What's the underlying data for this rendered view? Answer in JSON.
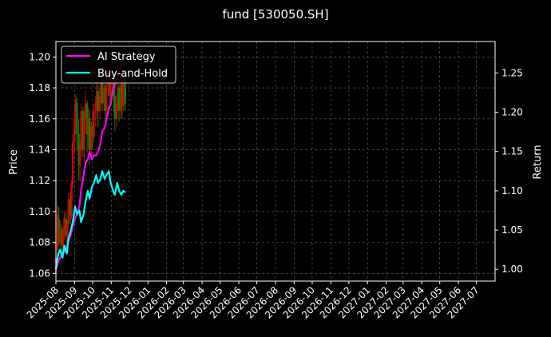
{
  "chart_data": {
    "type": "line",
    "title": "fund [530050.SH]",
    "ylabel_left": "Price",
    "ylabel_right": "Return",
    "ylim_left": [
      1.055,
      1.21
    ],
    "ylim_right": [
      0.985,
      1.29
    ],
    "yticks_left": [
      "1.06",
      "1.08",
      "1.10",
      "1.12",
      "1.14",
      "1.16",
      "1.18",
      "1.20"
    ],
    "yticks_right": [
      "1.00",
      "1.05",
      "1.10",
      "1.15",
      "1.20",
      "1.25"
    ],
    "xlim": [
      "2025-08-01",
      "2027-08-01"
    ],
    "xticks": [
      "2025-08",
      "2025-09",
      "2025-10",
      "2025-11",
      "2025-12",
      "2026-01",
      "2026-02",
      "2026-03",
      "2026-04",
      "2026-05",
      "2026-06",
      "2026-07",
      "2026-08",
      "2026-09",
      "2026-10",
      "2026-11",
      "2026-12",
      "2027-01",
      "2027-02",
      "2027-03",
      "2027-04",
      "2027-05",
      "2027-06",
      "2027-07"
    ],
    "grid": true,
    "legend_position": "top-left",
    "colors": {
      "up": "#d60000",
      "down": "#008a00",
      "ai": "#ff00ff",
      "bh": "#00ffff",
      "background": "#000000"
    },
    "series": [
      {
        "name": "AI Strategy",
        "axis": "right",
        "points": [
          [
            "2025-08-01",
            1.0
          ],
          [
            "2025-08-05",
            1.01
          ],
          [
            "2025-08-08",
            1.015
          ],
          [
            "2025-08-12",
            1.018
          ],
          [
            "2025-08-15",
            1.022
          ],
          [
            "2025-08-19",
            1.03
          ],
          [
            "2025-08-22",
            1.035
          ],
          [
            "2025-08-26",
            1.045
          ],
          [
            "2025-08-29",
            1.055
          ],
          [
            "2025-09-02",
            1.065
          ],
          [
            "2025-09-05",
            1.07
          ],
          [
            "2025-09-09",
            1.08
          ],
          [
            "2025-09-12",
            1.1
          ],
          [
            "2025-09-16",
            1.12
          ],
          [
            "2025-09-19",
            1.135
          ],
          [
            "2025-09-23",
            1.14
          ],
          [
            "2025-09-26",
            1.15
          ],
          [
            "2025-09-30",
            1.14
          ],
          [
            "2025-10-03",
            1.145
          ],
          [
            "2025-10-07",
            1.145
          ],
          [
            "2025-10-10",
            1.15
          ],
          [
            "2025-10-14",
            1.16
          ],
          [
            "2025-10-17",
            1.175
          ],
          [
            "2025-10-21",
            1.18
          ],
          [
            "2025-10-24",
            1.19
          ],
          [
            "2025-10-28",
            1.205
          ],
          [
            "2025-10-31",
            1.21
          ],
          [
            "2025-11-04",
            1.23
          ],
          [
            "2025-11-07",
            1.235
          ],
          [
            "2025-11-11",
            1.245
          ],
          [
            "2025-11-14",
            1.25
          ],
          [
            "2025-11-18",
            1.265
          ],
          [
            "2025-11-21",
            1.27
          ],
          [
            "2025-11-25",
            1.268
          ]
        ]
      },
      {
        "name": "Buy-and-Hold",
        "axis": "right",
        "points": [
          [
            "2025-08-01",
            1.0
          ],
          [
            "2025-08-05",
            1.02
          ],
          [
            "2025-08-08",
            1.025
          ],
          [
            "2025-08-12",
            1.015
          ],
          [
            "2025-08-15",
            1.03
          ],
          [
            "2025-08-19",
            1.02
          ],
          [
            "2025-08-22",
            1.04
          ],
          [
            "2025-08-26",
            1.05
          ],
          [
            "2025-08-29",
            1.06
          ],
          [
            "2025-09-02",
            1.08
          ],
          [
            "2025-09-05",
            1.07
          ],
          [
            "2025-09-09",
            1.075
          ],
          [
            "2025-09-12",
            1.06
          ],
          [
            "2025-09-16",
            1.07
          ],
          [
            "2025-09-19",
            1.085
          ],
          [
            "2025-09-23",
            1.1
          ],
          [
            "2025-09-26",
            1.09
          ],
          [
            "2025-09-30",
            1.105
          ],
          [
            "2025-10-03",
            1.11
          ],
          [
            "2025-10-07",
            1.12
          ],
          [
            "2025-10-10",
            1.11
          ],
          [
            "2025-10-14",
            1.115
          ],
          [
            "2025-10-17",
            1.125
          ],
          [
            "2025-10-21",
            1.115
          ],
          [
            "2025-10-24",
            1.12
          ],
          [
            "2025-10-28",
            1.125
          ],
          [
            "2025-10-31",
            1.11
          ],
          [
            "2025-11-04",
            1.1
          ],
          [
            "2025-11-07",
            1.095
          ],
          [
            "2025-11-11",
            1.11
          ],
          [
            "2025-11-14",
            1.1
          ],
          [
            "2025-11-18",
            1.095
          ],
          [
            "2025-11-21",
            1.1
          ],
          [
            "2025-11-25",
            1.098
          ]
        ]
      }
    ],
    "candles": [
      [
        "2025-08-01",
        1.06,
        1.075,
        1.07,
        1.058
      ],
      [
        "2025-08-04",
        1.075,
        1.104,
        1.098,
        1.072
      ],
      [
        "2025-08-06",
        1.095,
        1.103,
        1.08,
        1.078
      ],
      [
        "2025-08-08",
        1.08,
        1.095,
        1.09,
        1.076
      ],
      [
        "2025-08-11",
        1.088,
        1.092,
        1.078,
        1.07
      ],
      [
        "2025-08-13",
        1.078,
        1.09,
        1.086,
        1.073
      ],
      [
        "2025-08-15",
        1.085,
        1.1,
        1.096,
        1.082
      ],
      [
        "2025-08-18",
        1.095,
        1.099,
        1.084,
        1.08
      ],
      [
        "2025-08-20",
        1.084,
        1.095,
        1.092,
        1.079
      ],
      [
        "2025-08-22",
        1.092,
        1.112,
        1.108,
        1.089
      ],
      [
        "2025-08-25",
        1.108,
        1.112,
        1.097,
        1.092
      ],
      [
        "2025-08-27",
        1.097,
        1.12,
        1.118,
        1.095
      ],
      [
        "2025-08-29",
        1.118,
        1.15,
        1.145,
        1.115
      ],
      [
        "2025-09-01",
        1.145,
        1.168,
        1.16,
        1.138
      ],
      [
        "2025-09-03",
        1.16,
        1.176,
        1.172,
        1.15
      ],
      [
        "2025-09-05",
        1.17,
        1.174,
        1.15,
        1.14
      ],
      [
        "2025-09-08",
        1.15,
        1.16,
        1.13,
        1.12
      ],
      [
        "2025-09-10",
        1.13,
        1.145,
        1.14,
        1.12
      ],
      [
        "2025-09-12",
        1.14,
        1.17,
        1.165,
        1.135
      ],
      [
        "2025-09-15",
        1.165,
        1.168,
        1.14,
        1.135
      ],
      [
        "2025-09-17",
        1.14,
        1.165,
        1.16,
        1.132
      ],
      [
        "2025-09-19",
        1.16,
        1.178,
        1.17,
        1.15
      ],
      [
        "2025-09-22",
        1.17,
        1.172,
        1.15,
        1.138
      ],
      [
        "2025-09-24",
        1.15,
        1.168,
        1.16,
        1.14
      ],
      [
        "2025-09-26",
        1.16,
        1.166,
        1.14,
        1.13
      ],
      [
        "2025-09-29",
        1.14,
        1.158,
        1.155,
        1.135
      ],
      [
        "2025-10-01",
        1.155,
        1.165,
        1.148,
        1.14
      ],
      [
        "2025-10-03",
        1.148,
        1.17,
        1.165,
        1.145
      ],
      [
        "2025-10-06",
        1.165,
        1.175,
        1.17,
        1.155
      ],
      [
        "2025-10-08",
        1.17,
        1.185,
        1.178,
        1.16
      ],
      [
        "2025-10-10",
        1.178,
        1.182,
        1.165,
        1.155
      ],
      [
        "2025-10-13",
        1.165,
        1.18,
        1.175,
        1.16
      ],
      [
        "2025-10-15",
        1.175,
        1.19,
        1.185,
        1.17
      ],
      [
        "2025-10-17",
        1.185,
        1.195,
        1.17,
        1.165
      ],
      [
        "2025-10-20",
        1.17,
        1.185,
        1.18,
        1.165
      ],
      [
        "2025-10-22",
        1.18,
        1.182,
        1.165,
        1.155
      ],
      [
        "2025-10-24",
        1.165,
        1.188,
        1.182,
        1.16
      ],
      [
        "2025-10-27",
        1.182,
        1.194,
        1.19,
        1.175
      ],
      [
        "2025-10-29",
        1.19,
        1.193,
        1.175,
        1.17
      ],
      [
        "2025-10-31",
        1.175,
        1.19,
        1.185,
        1.17
      ],
      [
        "2025-11-03",
        1.185,
        1.198,
        1.19,
        1.178
      ],
      [
        "2025-11-05",
        1.19,
        1.192,
        1.175,
        1.165
      ],
      [
        "2025-11-07",
        1.175,
        1.185,
        1.16,
        1.152
      ],
      [
        "2025-11-10",
        1.16,
        1.175,
        1.17,
        1.155
      ],
      [
        "2025-11-12",
        1.17,
        1.185,
        1.18,
        1.165
      ],
      [
        "2025-11-14",
        1.18,
        1.182,
        1.165,
        1.158
      ],
      [
        "2025-11-17",
        1.165,
        1.188,
        1.182,
        1.16
      ],
      [
        "2025-11-19",
        1.182,
        1.186,
        1.168,
        1.16
      ],
      [
        "2025-11-21",
        1.168,
        1.192,
        1.188,
        1.165
      ],
      [
        "2025-11-24",
        1.188,
        1.19,
        1.17,
        1.165
      ]
    ]
  }
}
